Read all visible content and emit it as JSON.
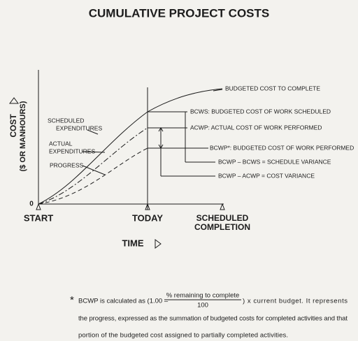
{
  "title": "CUMULATIVE PROJECT COSTS",
  "axes": {
    "y_label": "COST",
    "y_sublabel": "($ OR MANHOURS)",
    "origin": "0",
    "x_label": "TIME",
    "x_marks": [
      "START",
      "TODAY",
      "SCHEDULED",
      "COMPLETION"
    ]
  },
  "curves": [
    {
      "label": [
        "SCHEDULED",
        "EXPENDITURES"
      ]
    },
    {
      "label": [
        "ACTUAL",
        "EXPENDITURES"
      ]
    },
    {
      "label": [
        "PROGRESS"
      ]
    }
  ],
  "annotations": [
    "BUDGETED COST TO COMPLETE",
    "BCWS: BUDGETED COST OF WORK SCHEDULED",
    "ACWP: ACTUAL COST OF WORK PERFORMED",
    "BCWP*: BUDGETED COST OF WORK PERFORMED",
    "BCWP – BCWS = SCHEDULE VARIANCE",
    "BCWP – ACWP = COST VARIANCE"
  ],
  "footnote": {
    "marker": "*",
    "lead": "BCWP is calculated as (1.00 –",
    "numerator": "% remaining to complete",
    "denominator": "100",
    "tail": ") x current budget.  It represents",
    "lines": [
      "the progress, expressed as the summation of budgeted costs for completed activities and that",
      "portion of the budgeted cost assigned to partially completed activities."
    ]
  }
}
